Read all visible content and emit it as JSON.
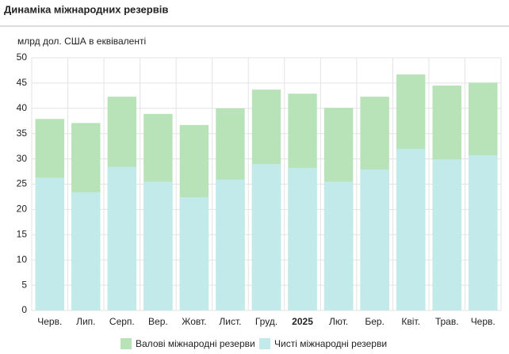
{
  "chart_data": {
    "type": "bar",
    "bar_mode": "overlay",
    "title": "Динаміка міжнародних резервів",
    "y_label": "млрд дол. США в еквіваленті",
    "categories": [
      "Черв.",
      "Лип.",
      "Серп.",
      "Вер.",
      "Жовт.",
      "Лист.",
      "Груд.",
      "2025",
      "Лют.",
      "Бер.",
      "Квіт.",
      "Трав.",
      "Черв."
    ],
    "bold_category_index": 7,
    "series": [
      {
        "name": "Валові міжнародні резерви",
        "color": "#b8e2b8",
        "values": [
          37.9,
          37.1,
          42.3,
          38.9,
          36.7,
          40.0,
          43.7,
          42.9,
          40.1,
          42.3,
          46.7,
          44.5,
          45.1
        ]
      },
      {
        "name": "Чисті міжнародні резерви",
        "color": "#c2eaeb",
        "values": [
          26.3,
          23.4,
          28.4,
          25.5,
          22.4,
          25.9,
          29.0,
          28.2,
          25.5,
          27.9,
          32.0,
          29.9,
          30.7
        ]
      }
    ],
    "ylim": [
      0,
      50
    ],
    "yticks": [
      0,
      5,
      10,
      15,
      20,
      25,
      30,
      35,
      40,
      45,
      50
    ],
    "grid": true
  }
}
